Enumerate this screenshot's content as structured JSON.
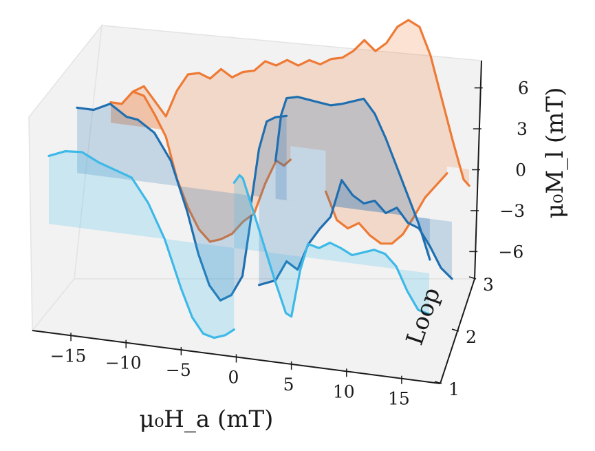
{
  "chart_data": {
    "type": "line",
    "projection": "3d",
    "x_axis": {
      "label": "μ₀H_a (mT)",
      "ticks": [
        -15,
        -10,
        -5,
        0,
        5,
        10,
        15
      ],
      "tick_labels": [
        "−15",
        "−10",
        "−5",
        "0",
        "5",
        "10",
        "15"
      ],
      "range": [
        -18.5,
        18.5
      ]
    },
    "y_axis": {
      "label": "Loop",
      "ticks": [
        1,
        2,
        3
      ],
      "tick_labels": [
        "1",
        "2",
        "3"
      ],
      "range": [
        1,
        3
      ]
    },
    "z_axis": {
      "label": "μ₀M_l (mT)",
      "ticks": [
        -6,
        -3,
        0,
        3,
        6
      ],
      "tick_labels": [
        "−6",
        "−3",
        "0",
        "3",
        "6"
      ],
      "range": [
        -8,
        8
      ]
    },
    "grid": false,
    "colors": {
      "loop1": "#3cb9e8",
      "loop2": "#1f6fb0",
      "loop3": "#ee7a35",
      "pane": "#f2f2f2",
      "pane_edge": "#e3e3e3"
    },
    "series": [
      {
        "loop": 1,
        "color": "#3cb9e8",
        "branches": [
          {
            "x": [
              -17,
              -15.5,
              -14,
              -12.5,
              -11,
              -9.5,
              -8,
              -6.5,
              -5,
              -4,
              -3,
              -2,
              -1,
              -0.2
            ],
            "z": [
              5.0,
              5.5,
              5.6,
              5.0,
              4.6,
              4.2,
              2.5,
              0.0,
              -3.5,
              -5.5,
              -6.6,
              -6.8,
              -6.5,
              -6.0
            ]
          },
          {
            "x": [
              -0.2,
              0.3,
              0.6,
              1.5,
              2.5,
              3.5,
              4.5,
              5.0,
              5.8,
              6.5,
              7.5,
              8.5,
              9.5,
              10.5,
              11.5,
              12.5,
              13.5,
              14.5,
              15.5,
              16.5,
              17.5
            ],
            "z": [
              4.8,
              5.4,
              5.2,
              3.0,
              0.5,
              -2.0,
              -4.3,
              -4.5,
              -1.0,
              1.0,
              0.8,
              1.3,
              1.0,
              0.6,
              0.9,
              1.2,
              1.0,
              0.2,
              -1.5,
              -2.8,
              -3.0
            ]
          }
        ]
      },
      {
        "loop": 2,
        "color": "#1f6fb0",
        "branches": [
          {
            "x": [
              -16,
              -14.5,
              -13,
              -11.5,
              -10.5,
              -9,
              -7.5,
              -6,
              -5,
              -4,
              -3,
              -2,
              -1,
              -0.2
            ],
            "z": [
              4.8,
              4.8,
              5.4,
              4.6,
              4.5,
              3.7,
              1.8,
              -1.8,
              -4.8,
              -7.0,
              -8.0,
              -7.5,
              -6.0,
              -1.5
            ]
          },
          {
            "x": [
              -0.2,
              0.5,
              1.2,
              2.0,
              3.0
            ],
            "z": [
              -0.5,
              3.5,
              5.6,
              6.0,
              6.2
            ]
          },
          {
            "x": [
              0.5,
              2.0,
              3.0,
              4.0,
              5.0,
              6.0,
              7.0,
              8.0,
              9.0,
              10.0,
              11.0,
              12.0,
              13.0,
              14.0,
              15.0,
              16.0,
              17.0,
              18.0
            ],
            "z": [
              -6.5,
              -6.0,
              -4.5,
              -5.0,
              -3.0,
              -1.8,
              -0.8,
              2.0,
              1.0,
              0.5,
              0.8,
              0.0,
              0.5,
              -0.5,
              -0.8,
              -2.0,
              -3.5,
              -4.2
            ]
          },
          {
            "x": [
              2.0,
              2.5,
              3.0,
              4.0,
              5.0,
              6.0,
              7.0,
              8.0,
              9.0,
              10.0,
              11.0,
              12.0,
              13.0,
              14.0,
              15.0,
              16.0
            ],
            "z": [
              2.8,
              6.2,
              7.5,
              7.7,
              7.6,
              7.5,
              7.4,
              7.6,
              7.9,
              8.2,
              7.2,
              5.5,
              3.5,
              1.5,
              -0.5,
              -3.0
            ]
          }
        ]
      },
      {
        "loop": 3,
        "color": "#ee7a35",
        "branches": [
          {
            "x": [
              -14.5,
              -13.5,
              -12.5,
              -11.5,
              -10.5,
              -9.5,
              -8.5,
              -7.5,
              -6.5,
              -5.5,
              -4.5,
              -3.5,
              -2.5,
              -1.5,
              -0.5,
              0.5,
              1.2,
              1.8
            ],
            "z": [
              1.5,
              1.5,
              2.5,
              2.3,
              1.0,
              -0.5,
              -3.5,
              -5.5,
              -7.0,
              -7.8,
              -7.5,
              -7.0,
              -6.0,
              -5.3,
              -3.0,
              -1.2,
              -1.5,
              -1.0
            ]
          },
          {
            "x": [
              -14.5,
              -13.5,
              -12.5,
              -11.5,
              -10.5,
              -9.5,
              -8.5,
              -7.5,
              -6.5,
              -5.5,
              -4.5,
              -3.5,
              -2.5,
              -1.5,
              -0.5,
              0.5,
              1.5,
              2.5,
              3.5,
              4.5,
              5.5,
              6.5,
              7.5,
              8.5,
              9.5,
              10.5,
              11.5,
              12.5,
              13.5,
              14.5,
              15.5,
              16.5,
              17.5,
              18.0
            ],
            "z": [
              1.5,
              1.5,
              2.5,
              3.0,
              2.0,
              1.0,
              3.0,
              4.3,
              4.5,
              4.2,
              5.0,
              4.5,
              5.0,
              5.2,
              6.0,
              5.8,
              6.3,
              6.0,
              6.5,
              6.3,
              6.8,
              7.0,
              7.6,
              8.5,
              7.8,
              8.5,
              9.8,
              10.4,
              10.0,
              8.0,
              5.0,
              2.0,
              -0.8,
              -1.2
            ]
          },
          {
            "x": [
              5.0,
              6.0,
              7.0,
              8.0,
              9.0,
              10.0,
              11.0,
              12.0,
              13.0,
              14.0,
              15.0,
              16.0
            ],
            "z": [
              -3.0,
              -5.0,
              -5.5,
              -5.0,
              -5.8,
              -6.3,
              -6.2,
              -5.4,
              -4.0,
              -2.5,
              -1.5,
              -0.5
            ]
          }
        ]
      }
    ]
  }
}
